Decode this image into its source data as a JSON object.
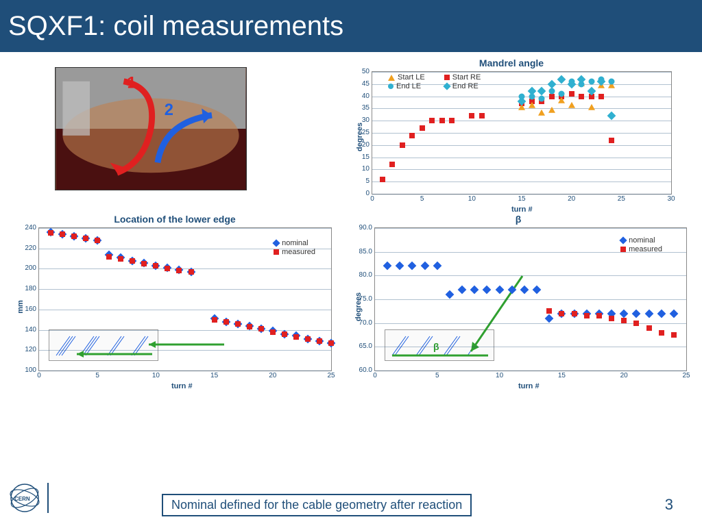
{
  "title": "SQXF1: coil measurements",
  "page_number": "3",
  "footer_note": "Nominal defined for the cable geometry after reaction",
  "colors": {
    "brand": "#1f4e79",
    "red": "#e02020",
    "blue": "#2060e0",
    "cyan": "#30b0d0",
    "orange": "#f0a020",
    "green": "#30a030"
  },
  "photo": {
    "annotations": [
      "1",
      "2"
    ]
  },
  "chart_mandrel": {
    "title": "Mandrel angle",
    "xlabel": "turn #",
    "ylabel": "degrees",
    "xlim": [
      0,
      30
    ],
    "xtick_step": 5,
    "ylim": [
      0,
      50
    ],
    "ytick_step": 5,
    "legend": [
      {
        "label": "Start LE",
        "shape": "tri",
        "color": "#f0a020"
      },
      {
        "label": "End LE",
        "shape": "ci",
        "color": "#30b0d0"
      },
      {
        "label": "Start RE",
        "shape": "sq",
        "color": "#e02020"
      },
      {
        "label": "End RE",
        "shape": "di",
        "color": "#30b0d0"
      }
    ],
    "series_startRE": [
      [
        1,
        6
      ],
      [
        2,
        12
      ],
      [
        3,
        20
      ],
      [
        4,
        24
      ],
      [
        5,
        27
      ],
      [
        6,
        30
      ],
      [
        7,
        30
      ],
      [
        8,
        30
      ],
      [
        10,
        32
      ],
      [
        11,
        32
      ],
      [
        15,
        37
      ],
      [
        16,
        38
      ],
      [
        17,
        38
      ],
      [
        18,
        40
      ],
      [
        19,
        40
      ],
      [
        20,
        41
      ],
      [
        21,
        40
      ],
      [
        22,
        40
      ],
      [
        23,
        40
      ],
      [
        24,
        22
      ]
    ],
    "series_startLE": [
      [
        15,
        35
      ],
      [
        16,
        36
      ],
      [
        17,
        33
      ],
      [
        18,
        34
      ],
      [
        19,
        38
      ],
      [
        20,
        36
      ],
      [
        21,
        45
      ],
      [
        22,
        35
      ],
      [
        23,
        44
      ],
      [
        24,
        44
      ]
    ],
    "series_endLE": [
      [
        15,
        40
      ],
      [
        16,
        40
      ],
      [
        17,
        39
      ],
      [
        18,
        42
      ],
      [
        19,
        41
      ],
      [
        20,
        46
      ],
      [
        21,
        45
      ],
      [
        22,
        46
      ],
      [
        23,
        47
      ],
      [
        24,
        46
      ]
    ],
    "series_endRE": [
      [
        15,
        38
      ],
      [
        16,
        42
      ],
      [
        17,
        42
      ],
      [
        18,
        45
      ],
      [
        19,
        47
      ],
      [
        20,
        45
      ],
      [
        21,
        47
      ],
      [
        22,
        42
      ],
      [
        23,
        46
      ],
      [
        24,
        32
      ]
    ]
  },
  "chart_edge": {
    "title": "Location of the lower edge",
    "xlabel": "turn #",
    "ylabel": "mm",
    "xlim": [
      0,
      25
    ],
    "xtick_step": 5,
    "ylim": [
      100,
      240
    ],
    "ytick_step": 20,
    "legend": [
      {
        "label": "nominal",
        "shape": "di",
        "color": "#2060e0"
      },
      {
        "label": "measured",
        "shape": "sq",
        "color": "#e02020"
      }
    ],
    "measured": [
      [
        1,
        235
      ],
      [
        2,
        234
      ],
      [
        3,
        232
      ],
      [
        4,
        230
      ],
      [
        5,
        228
      ],
      [
        6,
        212
      ],
      [
        7,
        210
      ],
      [
        8,
        208
      ],
      [
        9,
        205
      ],
      [
        10,
        203
      ],
      [
        11,
        200
      ],
      [
        12,
        198
      ],
      [
        13,
        197
      ],
      [
        15,
        150
      ],
      [
        16,
        148
      ],
      [
        17,
        146
      ],
      [
        18,
        143
      ],
      [
        19,
        141
      ],
      [
        20,
        138
      ],
      [
        21,
        136
      ],
      [
        22,
        133
      ],
      [
        23,
        131
      ],
      [
        24,
        129
      ],
      [
        25,
        127
      ]
    ],
    "nominal": [
      [
        1,
        236
      ],
      [
        2,
        234
      ],
      [
        3,
        232
      ],
      [
        4,
        230
      ],
      [
        5,
        228
      ],
      [
        6,
        214
      ],
      [
        7,
        211
      ],
      [
        8,
        208
      ],
      [
        9,
        206
      ],
      [
        10,
        203
      ],
      [
        11,
        201
      ],
      [
        12,
        199
      ],
      [
        13,
        197
      ],
      [
        15,
        151
      ],
      [
        16,
        148
      ],
      [
        17,
        146
      ],
      [
        18,
        144
      ],
      [
        19,
        141
      ],
      [
        20,
        139
      ],
      [
        21,
        136
      ],
      [
        22,
        134
      ],
      [
        23,
        131
      ],
      [
        24,
        129
      ],
      [
        25,
        127
      ]
    ]
  },
  "chart_beta": {
    "title": "β",
    "xlabel": "turn #",
    "ylabel": "degrees",
    "xlim": [
      0,
      25
    ],
    "xtick_step": 5,
    "ylim": [
      60,
      90
    ],
    "ytick_step": 5,
    "legend": [
      {
        "label": "nominal",
        "shape": "di",
        "color": "#2060e0"
      },
      {
        "label": "measured",
        "shape": "sq",
        "color": "#e02020"
      }
    ],
    "nominal": [
      [
        1,
        82
      ],
      [
        2,
        82
      ],
      [
        3,
        82
      ],
      [
        4,
        82
      ],
      [
        5,
        82
      ],
      [
        6,
        76
      ],
      [
        7,
        77
      ],
      [
        8,
        77
      ],
      [
        9,
        77
      ],
      [
        10,
        77
      ],
      [
        11,
        77
      ],
      [
        12,
        77
      ],
      [
        13,
        77
      ],
      [
        14,
        71
      ],
      [
        15,
        72
      ],
      [
        16,
        72
      ],
      [
        17,
        72
      ],
      [
        18,
        72
      ],
      [
        19,
        72
      ],
      [
        20,
        72
      ],
      [
        21,
        72
      ],
      [
        22,
        72
      ],
      [
        23,
        72
      ],
      [
        24,
        72
      ]
    ],
    "measured": [
      [
        14,
        72.5
      ],
      [
        15,
        72
      ],
      [
        16,
        72
      ],
      [
        17,
        71.5
      ],
      [
        18,
        71.5
      ],
      [
        19,
        71
      ],
      [
        20,
        70.5
      ],
      [
        21,
        70
      ],
      [
        22,
        69
      ],
      [
        23,
        68
      ],
      [
        24,
        67.5
      ]
    ],
    "annotation": "β"
  }
}
